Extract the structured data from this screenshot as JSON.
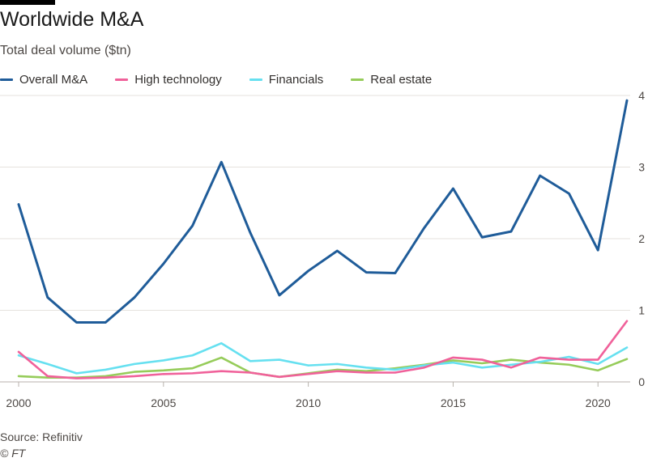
{
  "title": "Worldwide M&A",
  "subtitle": "Total deal volume ($tn)",
  "source": "Source: Refinitiv",
  "credit": "© FT",
  "chart_data": {
    "type": "line",
    "title": "Worldwide M&A",
    "subtitle": "Total deal volume ($tn)",
    "xlabel": "",
    "ylabel": "",
    "x": [
      2000,
      2001,
      2002,
      2003,
      2004,
      2005,
      2006,
      2007,
      2008,
      2009,
      2010,
      2011,
      2012,
      2013,
      2014,
      2015,
      2016,
      2017,
      2018,
      2019,
      2020,
      2021
    ],
    "xlim": [
      2000,
      2021
    ],
    "ylim": [
      0,
      4
    ],
    "x_ticks": [
      2000,
      2005,
      2010,
      2015,
      2020
    ],
    "y_ticks": [
      0,
      1,
      2,
      3,
      4
    ],
    "y_tick_side": "right",
    "grid": "horizontal",
    "legend_position": "top",
    "series": [
      {
        "name": "Overall M&A",
        "color": "#1f5c99",
        "values": [
          2.48,
          1.18,
          0.83,
          0.83,
          1.18,
          1.65,
          2.18,
          3.07,
          2.08,
          1.21,
          1.55,
          1.83,
          1.53,
          1.52,
          2.15,
          2.7,
          2.02,
          2.1,
          2.88,
          2.63,
          1.84,
          3.93
        ]
      },
      {
        "name": "High technology",
        "color": "#f0619a",
        "values": [
          0.42,
          0.08,
          0.05,
          0.06,
          0.08,
          0.11,
          0.12,
          0.15,
          0.13,
          0.07,
          0.11,
          0.15,
          0.13,
          0.13,
          0.2,
          0.34,
          0.31,
          0.2,
          0.34,
          0.31,
          0.31,
          0.85
        ]
      },
      {
        "name": "Financials",
        "color": "#66e0f0",
        "values": [
          0.37,
          0.25,
          0.12,
          0.17,
          0.25,
          0.3,
          0.37,
          0.54,
          0.29,
          0.31,
          0.23,
          0.25,
          0.2,
          0.17,
          0.23,
          0.27,
          0.2,
          0.24,
          0.28,
          0.35,
          0.25,
          0.48
        ]
      },
      {
        "name": "Real estate",
        "color": "#96cc5a",
        "values": [
          0.08,
          0.06,
          0.06,
          0.08,
          0.14,
          0.16,
          0.19,
          0.34,
          0.13,
          0.07,
          0.12,
          0.17,
          0.15,
          0.19,
          0.24,
          0.3,
          0.26,
          0.31,
          0.27,
          0.24,
          0.16,
          0.32
        ]
      }
    ]
  }
}
